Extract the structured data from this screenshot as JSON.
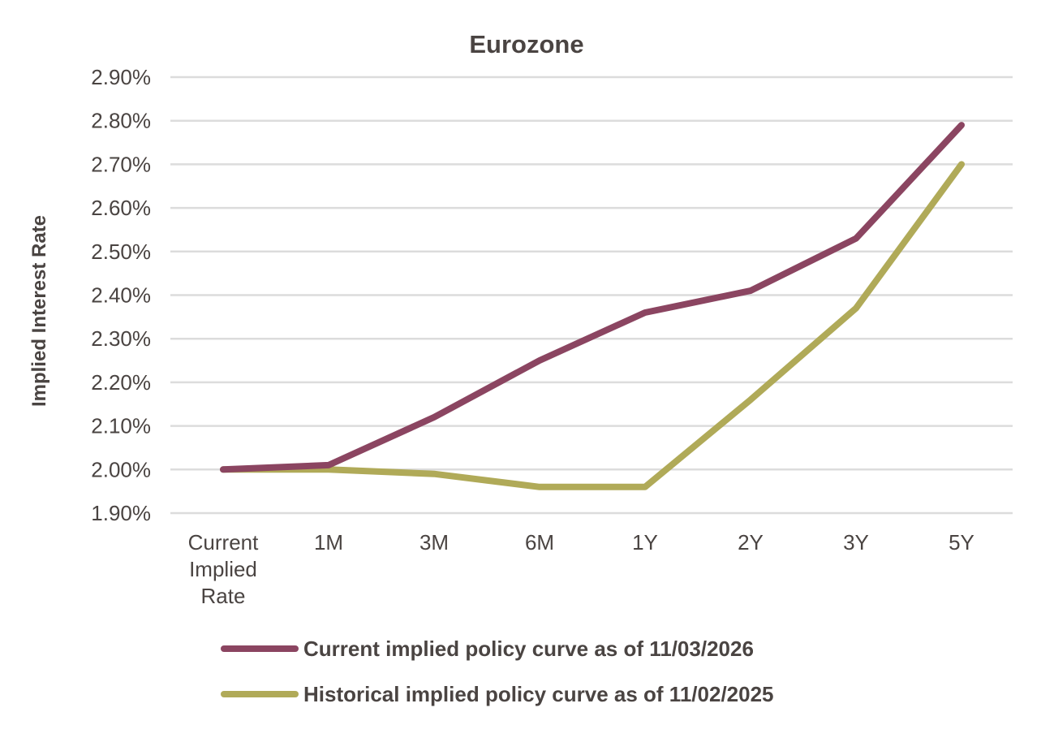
{
  "chart_data": {
    "type": "line",
    "title": "Eurozone",
    "xlabel": "",
    "ylabel": "Implied Interest Rate",
    "categories": [
      [
        "Current",
        "Implied",
        "Rate"
      ],
      [
        "1M"
      ],
      [
        "3M"
      ],
      [
        "6M"
      ],
      [
        "1Y"
      ],
      [
        "2Y"
      ],
      [
        "3Y"
      ],
      [
        "5Y"
      ]
    ],
    "ylim": [
      1.9,
      2.9
    ],
    "yticks": [
      1.9,
      2.0,
      2.1,
      2.2,
      2.3,
      2.4,
      2.5,
      2.6,
      2.7,
      2.8,
      2.9
    ],
    "ytick_labels": [
      "1.90%",
      "2.00%",
      "2.10%",
      "2.20%",
      "2.30%",
      "2.40%",
      "2.50%",
      "2.60%",
      "2.70%",
      "2.80%",
      "2.90%"
    ],
    "grid": true,
    "legend_position": "bottom",
    "series": [
      {
        "name": "Current implied policy curve as of 11/03/2026",
        "color": "#8b4561",
        "values": [
          2.0,
          2.01,
          2.12,
          2.25,
          2.36,
          2.41,
          2.53,
          2.79
        ]
      },
      {
        "name": "Historical implied policy curve as of 11/02/2025",
        "color": "#b0aa58",
        "values": [
          2.0,
          2.0,
          1.99,
          1.96,
          1.96,
          2.16,
          2.37,
          2.7
        ]
      }
    ]
  }
}
